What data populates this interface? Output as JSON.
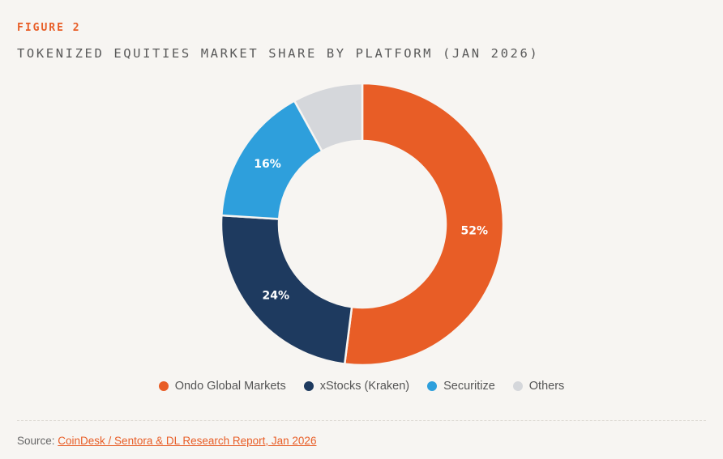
{
  "figure_label": "FIGURE 2",
  "colors": {
    "accent": "#e85d26",
    "background": "#f7f5f2"
  },
  "chart_data": {
    "type": "pie",
    "variant": "donut",
    "title": "TOKENIZED EQUITIES MARKET SHARE BY PLATFORM (JAN 2026)",
    "unit": "%",
    "slices": [
      {
        "name": "Ondo Global Markets",
        "value": 52,
        "label": "52%",
        "color": "#e85d26"
      },
      {
        "name": "xStocks (Kraken)",
        "value": 24,
        "label": "24%",
        "color": "#1e3a5f"
      },
      {
        "name": "Securitize",
        "value": 16,
        "label": "16%",
        "color": "#2e9fdc"
      },
      {
        "name": "Others",
        "value": 8,
        "label": "",
        "color": "#d5d7db"
      }
    ],
    "legend_position": "bottom-center"
  },
  "source": {
    "prefix": "Source: ",
    "link_text": "CoinDesk / Sentora & DL Research Report, Jan 2026"
  }
}
